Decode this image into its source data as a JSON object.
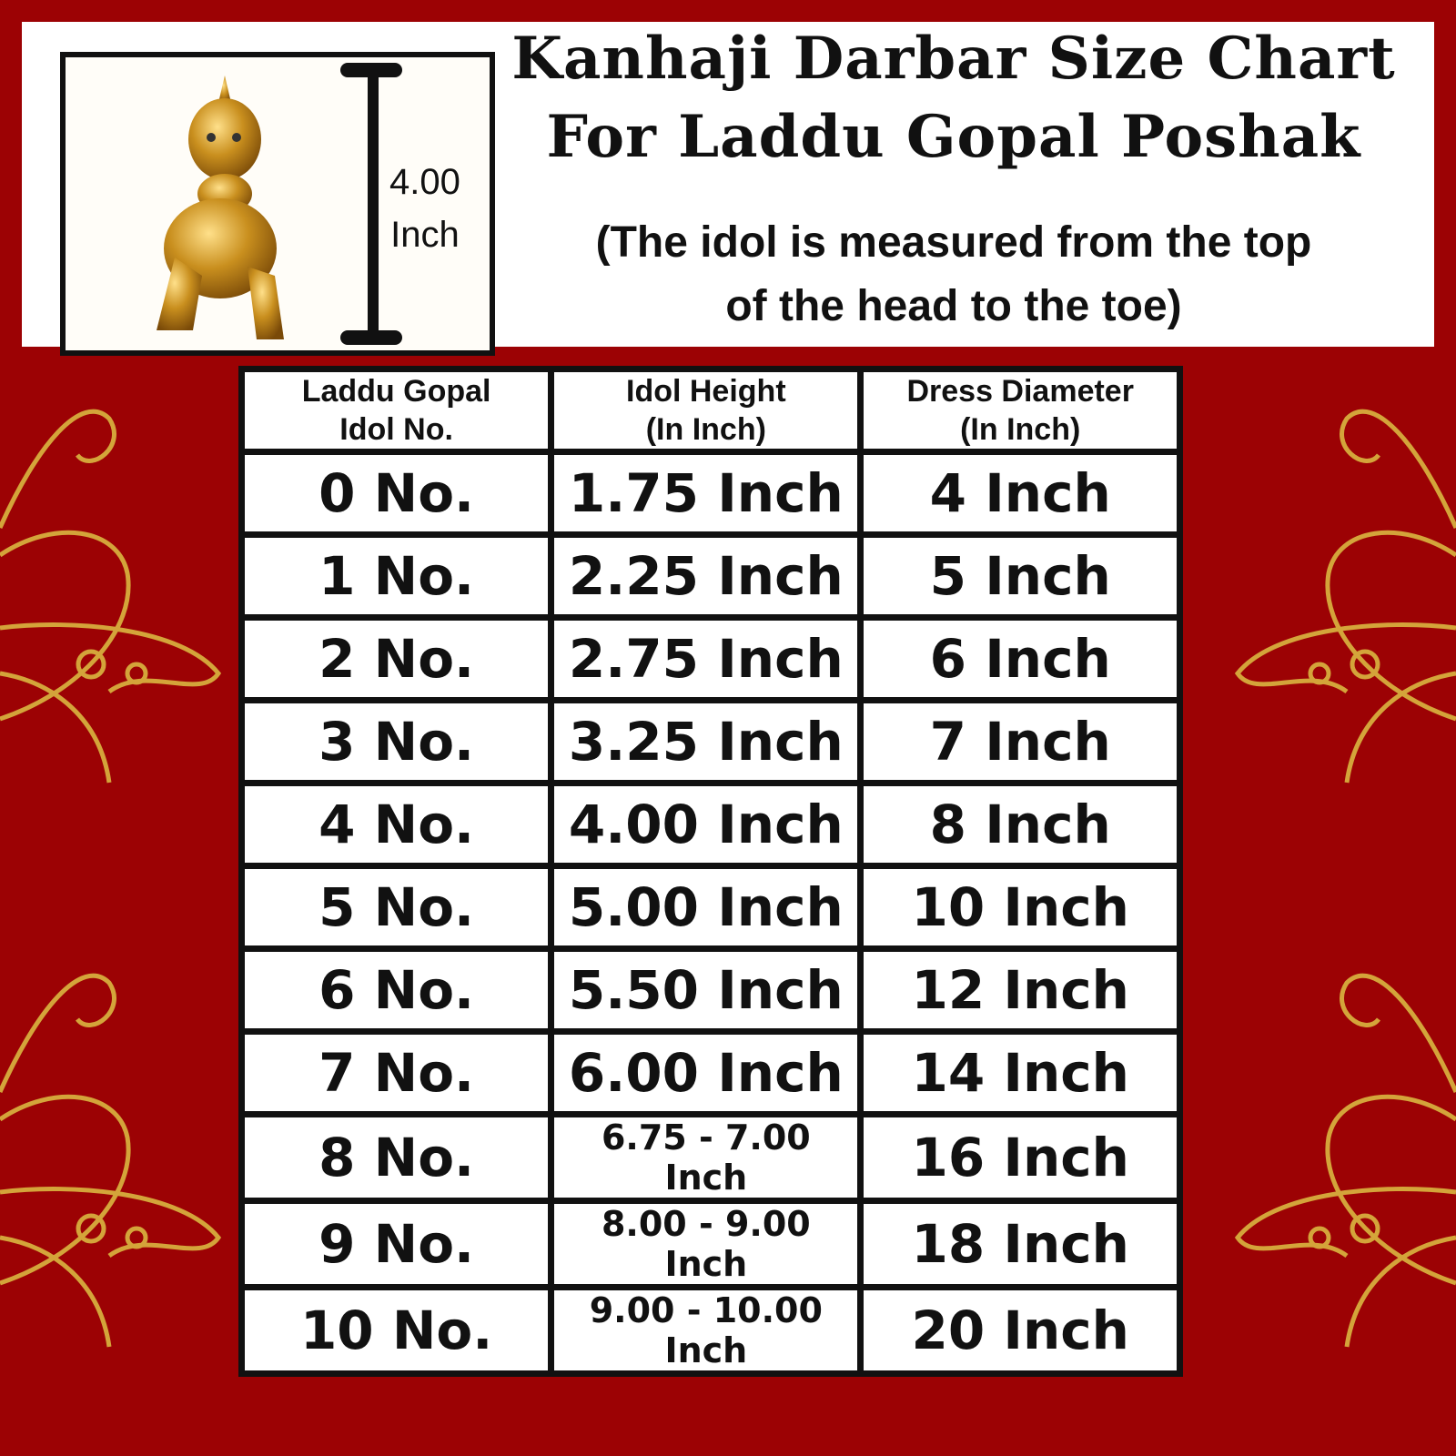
{
  "header": {
    "title_line1": "Kanhaji Darbar Size Chart",
    "title_line2": "For Laddu Gopal Poshak",
    "subtitle_line1": "(The idol is measured from the top",
    "subtitle_line2": "of the head to the toe)"
  },
  "idol_image": {
    "measure_value": "4.00",
    "measure_unit": "Inch"
  },
  "table": {
    "headers": [
      {
        "line1": "Laddu Gopal",
        "line2": "Idol No."
      },
      {
        "line1": "Idol Height",
        "line2": "(In Inch)"
      },
      {
        "line1": "Dress Diameter",
        "line2": "(In Inch)"
      }
    ],
    "rows": [
      [
        "0 No.",
        "1.75 Inch",
        "4 Inch"
      ],
      [
        "1 No.",
        "2.25 Inch",
        "5 Inch"
      ],
      [
        "2 No.",
        "2.75 Inch",
        "6 Inch"
      ],
      [
        "3 No.",
        "3.25 Inch",
        "7 Inch"
      ],
      [
        "4 No.",
        "4.00 Inch",
        "8 Inch"
      ],
      [
        "5 No.",
        "5.00 Inch",
        "10 Inch"
      ],
      [
        "6 No.",
        "5.50 Inch",
        "12 Inch"
      ],
      [
        "7 No.",
        "6.00 Inch",
        "14 Inch"
      ],
      [
        "8 No.",
        "6.75 - 7.00 Inch",
        "16 Inch"
      ],
      [
        "9 No.",
        "8.00 - 9.00 Inch",
        "18 Inch"
      ],
      [
        "10 No.",
        "9.00 - 10.00 Inch",
        "20 Inch"
      ]
    ]
  },
  "colors": {
    "background": "#9c0204",
    "ornament": "#d4a43a",
    "idol": "#c98f1e"
  }
}
